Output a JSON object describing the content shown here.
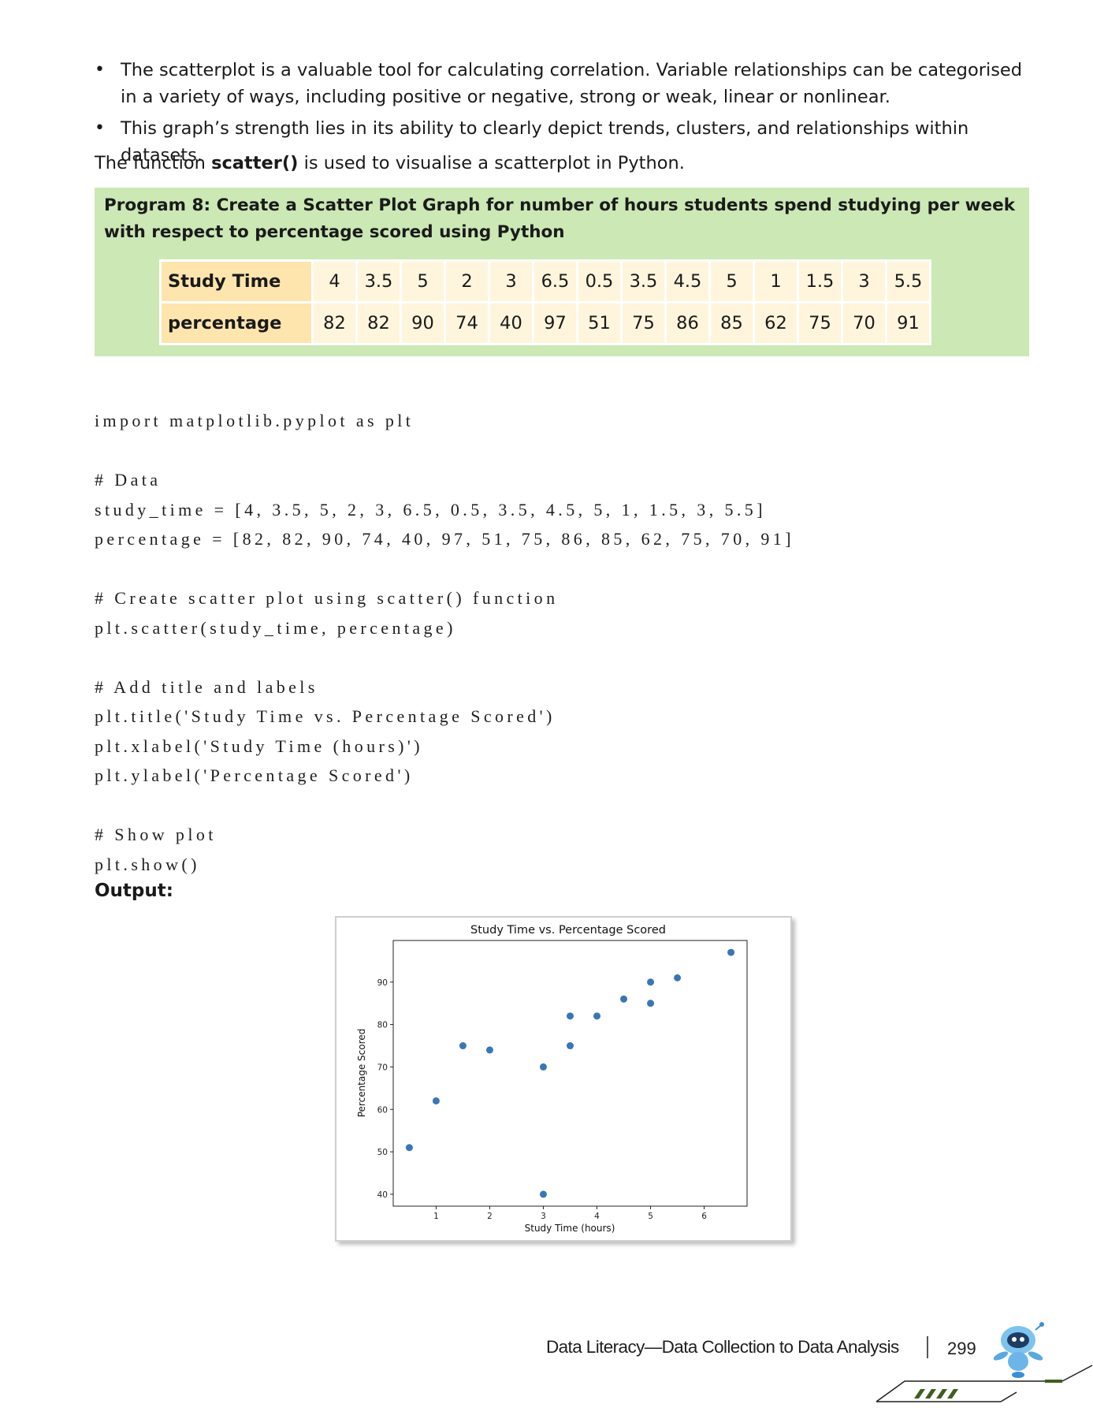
{
  "bullets": [
    {
      "text": "The scatterplot is a valuable tool for calculating correlation. Variable relationships can be categorised in a variety of ways, including positive or negative, strong or weak, linear or nonlinear."
    },
    {
      "text": "This graph’s strength lies in its ability to clearly depict trends, clusters, and relationships within datasets."
    }
  ],
  "intro": {
    "before": "The function ",
    "bold": "scatter()",
    "after": " is used to visualise a scatterplot in Python."
  },
  "program": {
    "title": "Program 8: Create a Scatter Plot Graph for number of hours students spend studying per week with respect to percentage scored using Python",
    "table": {
      "row1_label": "Study Time",
      "row1": [
        "4",
        "3.5",
        "5",
        "2",
        "3",
        "6.5",
        "0.5",
        "3.5",
        "4.5",
        "5",
        "1",
        "1.5",
        "3",
        "5.5"
      ],
      "row2_label": "percentage",
      "row2": [
        "82",
        "82",
        "90",
        "74",
        "40",
        "97",
        "51",
        "75",
        "86",
        "85",
        "62",
        "75",
        "70",
        "91"
      ]
    }
  },
  "code": "import matplotlib.pyplot as plt\n\n# Data\nstudy_time = [4, 3.5, 5, 2, 3, 6.5, 0.5, 3.5, 4.5, 5, 1, 1.5, 3, 5.5]\npercentage = [82, 82, 90, 74, 40, 97, 51, 75, 86, 85, 62, 75, 70, 91]\n\n# Create scatter plot using scatter() function\nplt.scatter(study_time, percentage)\n\n# Add title and labels\nplt.title('Study Time vs. Percentage Scored')\nplt.xlabel('Study Time (hours)')\nplt.ylabel('Percentage Scored')\n\n# Show plot\nplt.show()",
  "output_label": "Output:",
  "chart_data": {
    "type": "scatter",
    "title": "Study Time vs. Percentage Scored",
    "xlabel": "Study Time (hours)",
    "ylabel": "Percentage Scored",
    "x": [
      4,
      3.5,
      5,
      2,
      3,
      6.5,
      0.5,
      3.5,
      4.5,
      5,
      1,
      1.5,
      3,
      5.5
    ],
    "y": [
      82,
      82,
      90,
      74,
      40,
      97,
      51,
      75,
      86,
      85,
      62,
      75,
      70,
      91
    ],
    "xticks": [
      1,
      2,
      3,
      4,
      5,
      6
    ],
    "yticks": [
      40,
      50,
      60,
      70,
      80,
      90
    ],
    "xlim": [
      0.2,
      6.8
    ],
    "ylim": [
      37.2,
      99.8
    ],
    "point_color": "#3a76b6",
    "grid": false
  },
  "footer": {
    "text": "Data Literacy—Data Collection to Data Analysis",
    "page": "299"
  },
  "colors": {
    "program_bg": "#cbe8b5",
    "table_head": "#fee5ae",
    "table_cell": "#fff5dc"
  }
}
